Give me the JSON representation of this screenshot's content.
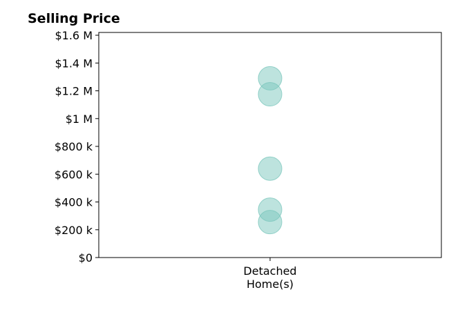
{
  "chart_data": {
    "type": "scatter",
    "title": "Selling Price",
    "categories": [
      "Detached\nHome(s)"
    ],
    "category_label_lines": [
      "Detached",
      "Home(s)"
    ],
    "points": [
      {
        "category": 0,
        "value": 1290000
      },
      {
        "category": 0,
        "value": 1175000
      },
      {
        "category": 0,
        "value": 640000
      },
      {
        "category": 0,
        "value": 345000
      },
      {
        "category": 0,
        "value": 255000
      }
    ],
    "ylim": [
      0,
      1620000
    ],
    "yticks": [
      {
        "value": 0,
        "label": "$0"
      },
      {
        "value": 200000,
        "label": "$200 k"
      },
      {
        "value": 400000,
        "label": "$400 k"
      },
      {
        "value": 600000,
        "label": "$600 k"
      },
      {
        "value": 800000,
        "label": "$800 k"
      },
      {
        "value": 1000000,
        "label": "$1 M"
      },
      {
        "value": 1200000,
        "label": "$1.2 M"
      },
      {
        "value": 1400000,
        "label": "$1.4 M"
      },
      {
        "value": 1600000,
        "label": "$1.6 M"
      }
    ],
    "grid": false,
    "marker_color": "#7cc7bd",
    "marker_opacity": 0.5
  }
}
